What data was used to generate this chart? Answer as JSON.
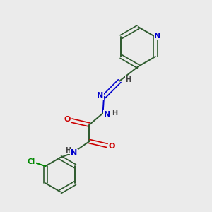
{
  "bg_color": "#ebebeb",
  "bond_color": "#2d5a2d",
  "N_color": "#0000cc",
  "O_color": "#cc0000",
  "Cl_color": "#008800",
  "H_color": "#444444",
  "figsize": [
    3.0,
    3.0
  ],
  "dpi": 100,
  "xlim": [
    0,
    10
  ],
  "ylim": [
    0,
    10
  ]
}
